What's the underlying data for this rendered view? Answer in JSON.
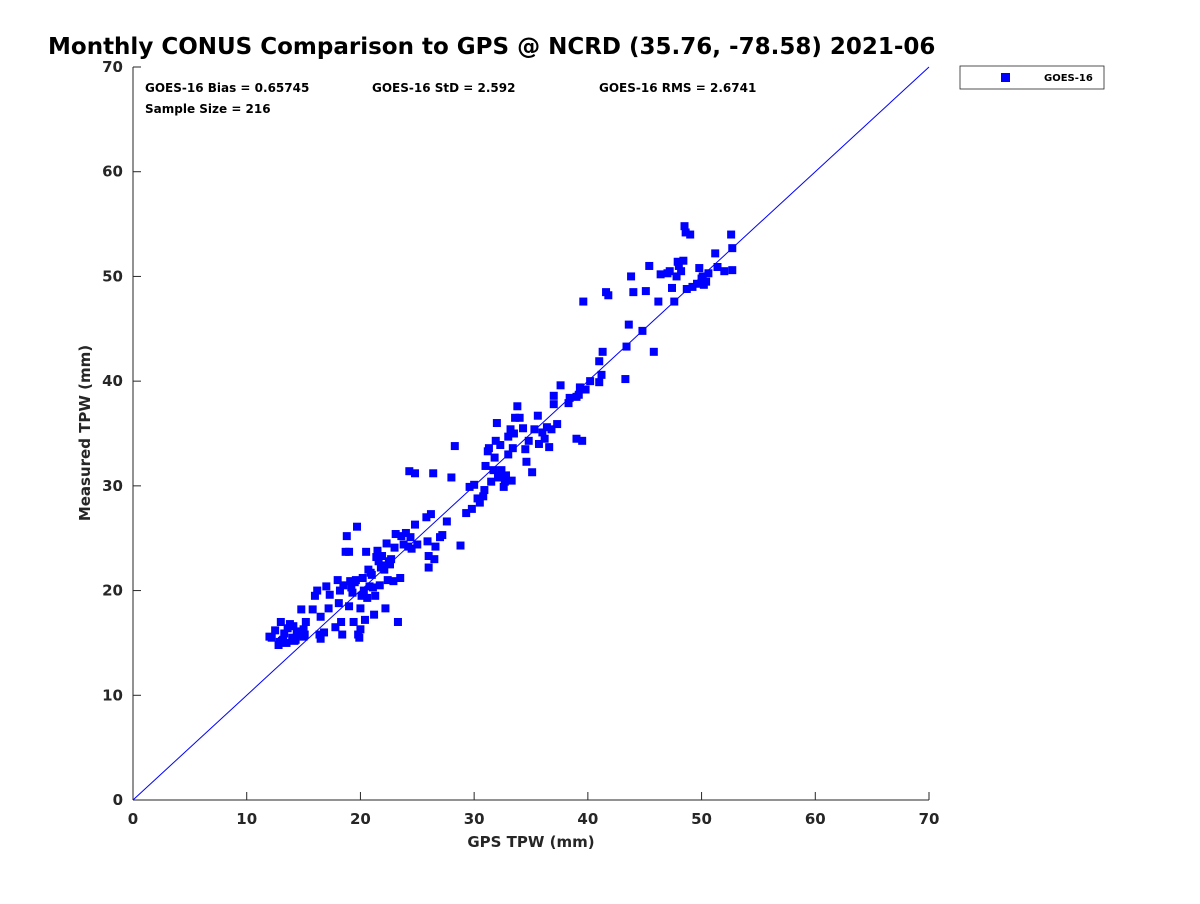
{
  "chart_data": {
    "type": "scatter",
    "title": "Monthly CONUS Comparison to GPS @ NCRD (35.76, -78.58) 2021-06",
    "xlabel": "GPS TPW (mm)",
    "ylabel": "Measured TPW (mm)",
    "xlim": [
      0,
      70
    ],
    "ylim": [
      0,
      70
    ],
    "x_ticks": [
      0,
      10,
      20,
      30,
      40,
      50,
      60,
      70
    ],
    "y_ticks": [
      0,
      10,
      20,
      30,
      40,
      50,
      60,
      70
    ],
    "x_tick_labels": [
      "0",
      "10",
      "20",
      "30",
      "40",
      "50",
      "60",
      "70"
    ],
    "y_tick_labels": [
      "0",
      "10",
      "20",
      "30",
      "40",
      "50",
      "60",
      "70"
    ],
    "grid": false,
    "legend_position": "outside-top-right",
    "reference_line": {
      "from": [
        0,
        0
      ],
      "to": [
        70,
        70
      ],
      "color": "#0000ff"
    },
    "annotations": {
      "bias": "GOES-16 Bias = 0.65745",
      "std": "GOES-16 StD = 2.592",
      "rms": "GOES-16 RMS = 2.6741",
      "sample_size": "Sample Size = 216"
    },
    "series": [
      {
        "name": "GOES-16",
        "color": "#0000ff",
        "marker": "square",
        "points": [
          [
            12.0,
            15.6
          ],
          [
            12.5,
            16.2
          ],
          [
            12.8,
            14.8
          ],
          [
            13.0,
            17.0
          ],
          [
            13.2,
            15.3
          ],
          [
            13.5,
            15.0
          ],
          [
            13.8,
            16.8
          ],
          [
            14.0,
            15.5
          ],
          [
            14.2,
            15.2
          ],
          [
            14.4,
            16.0
          ],
          [
            14.6,
            15.7
          ],
          [
            14.8,
            18.2
          ],
          [
            15.0,
            15.6
          ],
          [
            15.2,
            17.0
          ],
          [
            13.3,
            15.9
          ],
          [
            13.6,
            16.4
          ],
          [
            14.1,
            16.6
          ],
          [
            12.9,
            15.1
          ],
          [
            14.7,
            16.1
          ],
          [
            15.0,
            16.3
          ],
          [
            15.8,
            18.2
          ],
          [
            16.0,
            19.5
          ],
          [
            16.2,
            20.0
          ],
          [
            16.5,
            15.4
          ],
          [
            16.5,
            17.5
          ],
          [
            16.8,
            16.0
          ],
          [
            17.0,
            20.4
          ],
          [
            17.2,
            18.3
          ],
          [
            17.8,
            16.5
          ],
          [
            18.0,
            21.0
          ],
          [
            18.2,
            20.0
          ],
          [
            18.3,
            17.0
          ],
          [
            18.4,
            15.8
          ],
          [
            18.5,
            20.5
          ],
          [
            18.7,
            23.7
          ],
          [
            18.8,
            25.2
          ],
          [
            19.0,
            23.7
          ],
          [
            19.0,
            18.5
          ],
          [
            19.2,
            20.3
          ],
          [
            19.3,
            19.8
          ],
          [
            19.4,
            17.0
          ],
          [
            19.5,
            20.8
          ],
          [
            19.6,
            21.0
          ],
          [
            19.7,
            26.1
          ],
          [
            19.8,
            15.8
          ],
          [
            19.9,
            15.5
          ],
          [
            20.0,
            16.3
          ],
          [
            20.0,
            18.3
          ],
          [
            20.1,
            19.5
          ],
          [
            20.2,
            21.2
          ],
          [
            20.3,
            20.0
          ],
          [
            20.4,
            17.2
          ],
          [
            20.5,
            23.7
          ],
          [
            20.6,
            19.3
          ],
          [
            20.8,
            20.4
          ],
          [
            20.9,
            21.7
          ],
          [
            21.0,
            21.5
          ],
          [
            21.2,
            17.7
          ],
          [
            21.3,
            19.5
          ],
          [
            21.4,
            23.2
          ],
          [
            21.5,
            23.8
          ],
          [
            21.6,
            22.8
          ],
          [
            21.7,
            20.5
          ],
          [
            21.8,
            22.2
          ],
          [
            21.9,
            23.3
          ],
          [
            22.0,
            22.4
          ],
          [
            22.1,
            22.0
          ],
          [
            22.2,
            18.3
          ],
          [
            22.3,
            24.5
          ],
          [
            22.4,
            21.0
          ],
          [
            22.5,
            22.8
          ],
          [
            22.7,
            23.0
          ],
          [
            22.9,
            20.9
          ],
          [
            23.0,
            24.1
          ],
          [
            23.1,
            25.4
          ],
          [
            23.3,
            17.0
          ],
          [
            23.5,
            21.2
          ],
          [
            23.6,
            25.2
          ],
          [
            23.8,
            24.4
          ],
          [
            24.0,
            25.5
          ],
          [
            24.2,
            24.2
          ],
          [
            24.3,
            31.4
          ],
          [
            24.4,
            25.1
          ],
          [
            24.5,
            24.0
          ],
          [
            24.8,
            31.2
          ],
          [
            24.8,
            26.3
          ],
          [
            25.8,
            27.0
          ],
          [
            25.9,
            24.7
          ],
          [
            26.0,
            22.2
          ],
          [
            26.0,
            23.3
          ],
          [
            26.2,
            27.3
          ],
          [
            26.4,
            31.2
          ],
          [
            26.5,
            23.0
          ],
          [
            26.6,
            24.2
          ],
          [
            27.0,
            25.1
          ],
          [
            27.2,
            25.3
          ],
          [
            27.6,
            26.6
          ],
          [
            28.0,
            30.8
          ],
          [
            28.3,
            33.8
          ],
          [
            28.8,
            24.3
          ],
          [
            29.3,
            27.4
          ],
          [
            29.6,
            29.9
          ],
          [
            29.8,
            27.8
          ],
          [
            30.0,
            30.1
          ],
          [
            30.3,
            28.8
          ],
          [
            30.5,
            28.4
          ],
          [
            30.8,
            29.0
          ],
          [
            31.0,
            31.9
          ],
          [
            31.2,
            33.3
          ],
          [
            31.3,
            33.6
          ],
          [
            31.5,
            30.4
          ],
          [
            31.7,
            31.5
          ],
          [
            31.8,
            32.7
          ],
          [
            31.9,
            34.3
          ],
          [
            32.0,
            36.0
          ],
          [
            32.1,
            30.8
          ],
          [
            32.2,
            31.0
          ],
          [
            32.3,
            33.9
          ],
          [
            32.4,
            31.5
          ],
          [
            32.5,
            30.9
          ],
          [
            32.6,
            29.9
          ],
          [
            32.7,
            30.4
          ],
          [
            32.8,
            31.0
          ],
          [
            33.0,
            34.7
          ],
          [
            33.0,
            33.0
          ],
          [
            33.2,
            35.4
          ],
          [
            33.3,
            30.5
          ],
          [
            33.4,
            33.6
          ],
          [
            33.6,
            36.5
          ],
          [
            33.8,
            37.6
          ],
          [
            34.0,
            36.5
          ],
          [
            34.3,
            35.5
          ],
          [
            34.5,
            33.5
          ],
          [
            34.6,
            32.3
          ],
          [
            34.8,
            34.3
          ],
          [
            35.1,
            31.3
          ],
          [
            35.3,
            35.4
          ],
          [
            35.6,
            36.7
          ],
          [
            35.7,
            34.0
          ],
          [
            36.2,
            34.5
          ],
          [
            36.4,
            35.6
          ],
          [
            36.6,
            33.7
          ],
          [
            36.8,
            35.4
          ],
          [
            37.0,
            38.6
          ],
          [
            37.0,
            37.8
          ],
          [
            37.3,
            35.9
          ],
          [
            37.6,
            39.6
          ],
          [
            38.3,
            37.9
          ],
          [
            38.4,
            38.4
          ],
          [
            39.0,
            38.5
          ],
          [
            39.0,
            34.5
          ],
          [
            39.2,
            38.7
          ],
          [
            39.3,
            39.4
          ],
          [
            39.5,
            34.3
          ],
          [
            39.6,
            47.6
          ],
          [
            39.8,
            39.2
          ],
          [
            40.2,
            40.0
          ],
          [
            41.0,
            39.9
          ],
          [
            41.0,
            41.9
          ],
          [
            41.2,
            40.6
          ],
          [
            41.3,
            42.8
          ],
          [
            41.6,
            48.5
          ],
          [
            41.8,
            48.2
          ],
          [
            43.3,
            40.2
          ],
          [
            43.4,
            43.3
          ],
          [
            43.6,
            45.4
          ],
          [
            43.8,
            50.0
          ],
          [
            44.0,
            48.5
          ],
          [
            44.8,
            44.8
          ],
          [
            45.1,
            48.6
          ],
          [
            45.4,
            51.0
          ],
          [
            45.8,
            42.8
          ],
          [
            46.2,
            47.6
          ],
          [
            46.4,
            50.2
          ],
          [
            47.0,
            50.3
          ],
          [
            47.2,
            50.5
          ],
          [
            47.4,
            48.9
          ],
          [
            47.6,
            47.6
          ],
          [
            47.8,
            50.0
          ],
          [
            47.9,
            51.4
          ],
          [
            48.0,
            51.0
          ],
          [
            48.2,
            50.5
          ],
          [
            48.4,
            51.5
          ],
          [
            48.5,
            54.8
          ],
          [
            48.6,
            54.2
          ],
          [
            48.7,
            48.8
          ],
          [
            49.0,
            54.0
          ],
          [
            49.2,
            49.0
          ],
          [
            49.6,
            49.3
          ],
          [
            49.8,
            50.8
          ],
          [
            50.0,
            49.8
          ],
          [
            50.1,
            50.0
          ],
          [
            50.2,
            49.2
          ],
          [
            50.4,
            49.5
          ],
          [
            50.6,
            50.3
          ],
          [
            51.2,
            52.2
          ],
          [
            51.4,
            50.9
          ],
          [
            52.0,
            50.5
          ],
          [
            52.6,
            54.0
          ],
          [
            52.7,
            52.7
          ],
          [
            52.7,
            50.6
          ],
          [
            12.2,
            15.5
          ],
          [
            13.1,
            15.2
          ],
          [
            14.3,
            15.3
          ],
          [
            15.1,
            15.8
          ],
          [
            16.4,
            15.8
          ],
          [
            17.3,
            19.6
          ],
          [
            18.1,
            18.8
          ],
          [
            19.1,
            20.9
          ],
          [
            20.7,
            22.0
          ],
          [
            21.1,
            20.3
          ],
          [
            22.6,
            22.5
          ],
          [
            25.0,
            24.4
          ],
          [
            30.9,
            29.6
          ],
          [
            33.5,
            35.0
          ],
          [
            36.0,
            35.1
          ]
        ]
      }
    ]
  }
}
